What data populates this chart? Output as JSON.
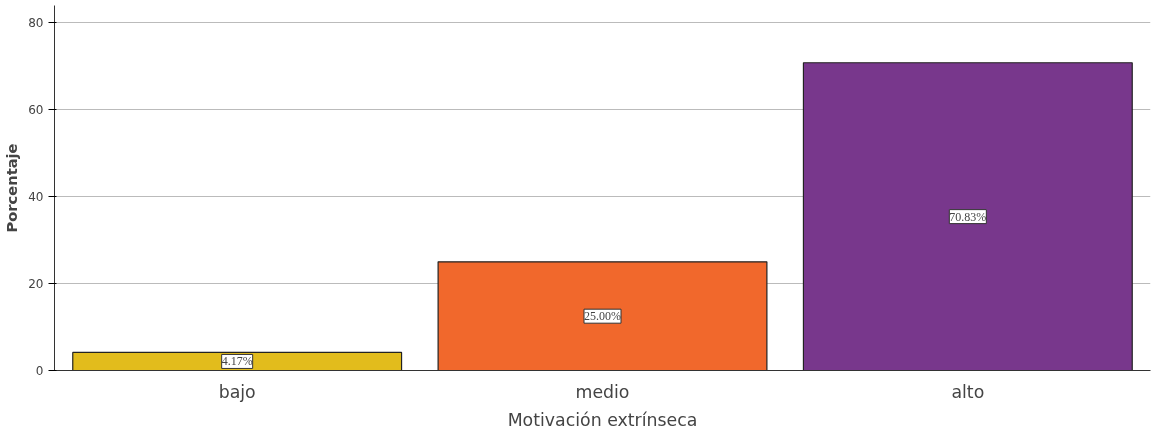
{
  "chart_data": {
    "type": "bar",
    "xlabel": "Motivación extrínseca",
    "ylabel": "Porcentaje",
    "categories": [
      "bajo",
      "medio",
      "alto"
    ],
    "values": [
      4.17,
      25.0,
      70.83
    ],
    "colors": [
      "#e2bc1c",
      "#f1682c",
      "#78378c"
    ],
    "value_labels": [
      "4.17%",
      "25.00%",
      "70.83%"
    ],
    "ylim": [
      0,
      84
    ],
    "yticks": [
      0,
      20,
      40,
      60,
      80
    ],
    "grid": "y"
  }
}
